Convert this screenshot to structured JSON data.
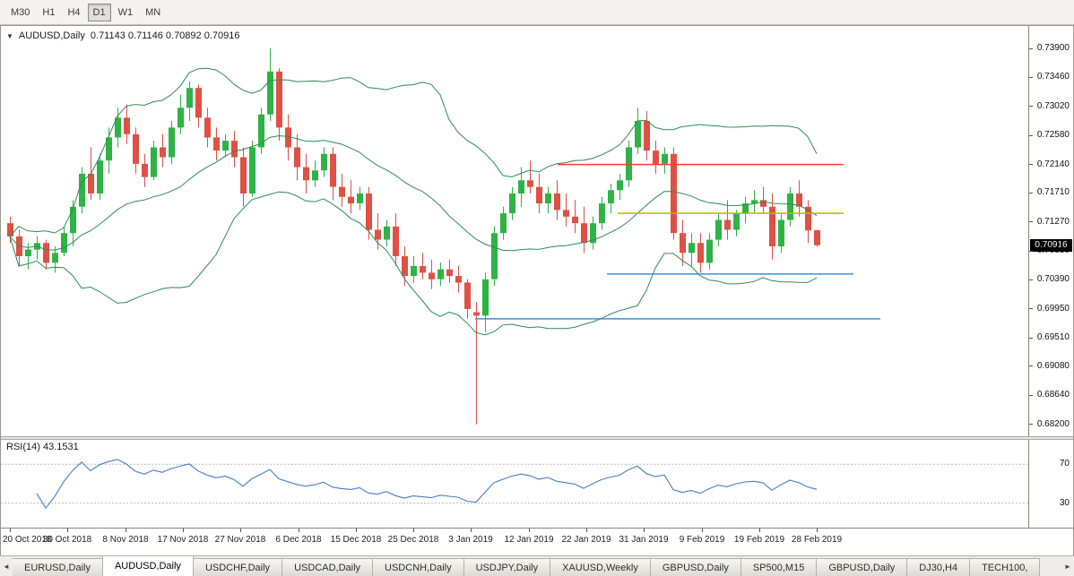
{
  "toolbar": {
    "timeframes": [
      {
        "label": "M30",
        "active": false
      },
      {
        "label": "H1",
        "active": false
      },
      {
        "label": "H4",
        "active": false
      },
      {
        "label": "D1",
        "active": true
      },
      {
        "label": "W1",
        "active": false
      },
      {
        "label": "MN",
        "active": false
      }
    ]
  },
  "chart": {
    "title": "AUDUSD,Daily",
    "ohlc_text": "0.71143 0.71146 0.70892 0.70916",
    "current_price": "0.70916",
    "price_axis_labels": [
      "0.73900",
      "0.73460",
      "0.73020",
      "0.72580",
      "0.72140",
      "0.71710",
      "0.71270",
      "0.70830",
      "0.70390",
      "0.69950",
      "0.69510",
      "0.69080",
      "0.68640",
      "0.68200"
    ],
    "date_axis_labels": [
      "20 Oct 2018",
      "30 Oct 2018",
      "8 Nov 2018",
      "17 Nov 2018",
      "27 Nov 2018",
      "6 Dec 2018",
      "15 Dec 2018",
      "25 Dec 2018",
      "3 Jan 2019",
      "12 Jan 2019",
      "22 Jan 2019",
      "31 Jan 2019",
      "9 Feb 2019",
      "19 Feb 2019",
      "28 Feb 2019"
    ],
    "colors": {
      "bull": "#2eb344",
      "bear": "#df5045",
      "bollinger": "#2e8b57",
      "rsi_line": "#4a7dbf",
      "level_line": "#b8b8b8",
      "hline_red": "#ff3b30",
      "hline_yellow": "#b5b900",
      "hline_blue": "#3f8fd2",
      "badge_bg": "#000000",
      "badge_text": "#ffffff"
    }
  },
  "chart_data": {
    "type": "candlestick",
    "symbol": "AUDUSD",
    "timeframe": "Daily",
    "y_range": [
      0.6802,
      0.7424
    ],
    "candles_ohlc": [
      [
        0.7125,
        0.7135,
        0.7095,
        0.7105
      ],
      [
        0.7105,
        0.7115,
        0.706,
        0.7075
      ],
      [
        0.7075,
        0.7095,
        0.7055,
        0.7085
      ],
      [
        0.7085,
        0.7105,
        0.707,
        0.7095
      ],
      [
        0.7095,
        0.71,
        0.7055,
        0.7065
      ],
      [
        0.7065,
        0.709,
        0.705,
        0.708
      ],
      [
        0.708,
        0.712,
        0.7075,
        0.711
      ],
      [
        0.711,
        0.716,
        0.709,
        0.715
      ],
      [
        0.715,
        0.721,
        0.714,
        0.72
      ],
      [
        0.72,
        0.724,
        0.716,
        0.717
      ],
      [
        0.717,
        0.723,
        0.716,
        0.722
      ],
      [
        0.722,
        0.727,
        0.72,
        0.7255
      ],
      [
        0.7255,
        0.73,
        0.724,
        0.7285
      ],
      [
        0.7285,
        0.7305,
        0.7245,
        0.726
      ],
      [
        0.726,
        0.727,
        0.72,
        0.7215
      ],
      [
        0.7215,
        0.723,
        0.718,
        0.7195
      ],
      [
        0.7195,
        0.725,
        0.719,
        0.724
      ],
      [
        0.724,
        0.726,
        0.721,
        0.7225
      ],
      [
        0.7225,
        0.728,
        0.7215,
        0.727
      ],
      [
        0.727,
        0.732,
        0.726,
        0.73
      ],
      [
        0.73,
        0.734,
        0.728,
        0.733
      ],
      [
        0.733,
        0.7335,
        0.727,
        0.7285
      ],
      [
        0.7285,
        0.73,
        0.724,
        0.7255
      ],
      [
        0.7255,
        0.727,
        0.722,
        0.7235
      ],
      [
        0.7235,
        0.726,
        0.7225,
        0.725
      ],
      [
        0.725,
        0.7265,
        0.721,
        0.7225
      ],
      [
        0.7225,
        0.724,
        0.715,
        0.717
      ],
      [
        0.717,
        0.725,
        0.7165,
        0.724
      ],
      [
        0.724,
        0.73,
        0.723,
        0.729
      ],
      [
        0.729,
        0.739,
        0.728,
        0.7355
      ],
      [
        0.7355,
        0.736,
        0.725,
        0.727
      ],
      [
        0.727,
        0.729,
        0.722,
        0.724
      ],
      [
        0.724,
        0.726,
        0.719,
        0.721
      ],
      [
        0.721,
        0.723,
        0.717,
        0.719
      ],
      [
        0.719,
        0.722,
        0.718,
        0.7205
      ],
      [
        0.7205,
        0.724,
        0.7195,
        0.723
      ],
      [
        0.723,
        0.724,
        0.716,
        0.718
      ],
      [
        0.718,
        0.72,
        0.715,
        0.7165
      ],
      [
        0.7165,
        0.719,
        0.714,
        0.7155
      ],
      [
        0.7155,
        0.718,
        0.7145,
        0.717
      ],
      [
        0.717,
        0.718,
        0.71,
        0.7115
      ],
      [
        0.7115,
        0.714,
        0.7085,
        0.71
      ],
      [
        0.71,
        0.713,
        0.709,
        0.712
      ],
      [
        0.712,
        0.714,
        0.706,
        0.7075
      ],
      [
        0.7075,
        0.709,
        0.703,
        0.7045
      ],
      [
        0.7045,
        0.7075,
        0.7035,
        0.706
      ],
      [
        0.706,
        0.708,
        0.704,
        0.705
      ],
      [
        0.705,
        0.707,
        0.7025,
        0.704
      ],
      [
        0.704,
        0.7065,
        0.703,
        0.7055
      ],
      [
        0.7055,
        0.707,
        0.7035,
        0.7045
      ],
      [
        0.7045,
        0.706,
        0.702,
        0.7035
      ],
      [
        0.7035,
        0.704,
        0.698,
        0.6995
      ],
      [
        0.699,
        0.7005,
        0.682,
        0.6985
      ],
      [
        0.6985,
        0.705,
        0.696,
        0.704
      ],
      [
        0.704,
        0.712,
        0.703,
        0.711
      ],
      [
        0.711,
        0.715,
        0.71,
        0.714
      ],
      [
        0.714,
        0.718,
        0.713,
        0.717
      ],
      [
        0.717,
        0.721,
        0.715,
        0.719
      ],
      [
        0.719,
        0.722,
        0.717,
        0.718
      ],
      [
        0.718,
        0.72,
        0.714,
        0.7155
      ],
      [
        0.7155,
        0.718,
        0.714,
        0.717
      ],
      [
        0.717,
        0.719,
        0.713,
        0.7145
      ],
      [
        0.7145,
        0.717,
        0.712,
        0.7135
      ],
      [
        0.7135,
        0.716,
        0.711,
        0.7125
      ],
      [
        0.7125,
        0.715,
        0.708,
        0.7095
      ],
      [
        0.7095,
        0.7135,
        0.7085,
        0.7125
      ],
      [
        0.7125,
        0.7165,
        0.7115,
        0.7155
      ],
      [
        0.7155,
        0.7185,
        0.714,
        0.7175
      ],
      [
        0.7175,
        0.72,
        0.716,
        0.719
      ],
      [
        0.719,
        0.725,
        0.718,
        0.724
      ],
      [
        0.724,
        0.73,
        0.723,
        0.728
      ],
      [
        0.728,
        0.7295,
        0.722,
        0.7235
      ],
      [
        0.7235,
        0.725,
        0.72,
        0.7215
      ],
      [
        0.7215,
        0.724,
        0.72,
        0.723
      ],
      [
        0.723,
        0.724,
        0.71,
        0.711
      ],
      [
        0.711,
        0.713,
        0.706,
        0.708
      ],
      [
        0.708,
        0.711,
        0.706,
        0.7095
      ],
      [
        0.7095,
        0.711,
        0.705,
        0.7065
      ],
      [
        0.7065,
        0.711,
        0.7055,
        0.71
      ],
      [
        0.71,
        0.714,
        0.709,
        0.713
      ],
      [
        0.713,
        0.716,
        0.71,
        0.7115
      ],
      [
        0.7115,
        0.7145,
        0.7105,
        0.714
      ],
      [
        0.714,
        0.7165,
        0.7125,
        0.7155
      ],
      [
        0.7155,
        0.7175,
        0.714,
        0.716
      ],
      [
        0.716,
        0.718,
        0.714,
        0.715
      ],
      [
        0.715,
        0.717,
        0.707,
        0.709
      ],
      [
        0.709,
        0.714,
        0.708,
        0.713
      ],
      [
        0.713,
        0.718,
        0.712,
        0.717
      ],
      [
        0.717,
        0.719,
        0.7135,
        0.715
      ],
      [
        0.715,
        0.716,
        0.7095,
        0.7114
      ],
      [
        0.71143,
        0.71146,
        0.70892,
        0.70916
      ]
    ],
    "overlays": {
      "bollinger_bands": {
        "period": 20,
        "deviation": 2
      },
      "horizontal_lines": [
        {
          "price": 0.7214,
          "color_key": "hline_red",
          "from_frac": 0.542,
          "to_frac": 0.82
        },
        {
          "price": 0.714,
          "color_key": "hline_yellow",
          "from_frac": 0.6,
          "to_frac": 0.82
        },
        {
          "price": 0.7048,
          "color_key": "hline_blue",
          "from_frac": 0.59,
          "to_frac": 0.83
        },
        {
          "price": 0.698,
          "color_key": "hline_blue",
          "from_frac": 0.462,
          "to_frac": 0.856
        }
      ]
    },
    "indicator_pane": {
      "type": "line",
      "name": "RSI",
      "period": 14,
      "current_value": 43.1531,
      "levels": [
        70,
        30
      ],
      "y_range": [
        5,
        95
      ]
    }
  },
  "rsi_panel": {
    "label": "RSI(14) 43.1531",
    "level_labels": [
      "70",
      "30"
    ]
  },
  "tabs": {
    "left_arrow": "◄",
    "right_arrow": "►",
    "items": [
      {
        "label": "EURUSD,Daily",
        "active": false
      },
      {
        "label": "AUDUSD,Daily",
        "active": true
      },
      {
        "label": "USDCHF,Daily",
        "active": false
      },
      {
        "label": "USDCAD,Daily",
        "active": false
      },
      {
        "label": "USDCNH,Daily",
        "active": false
      },
      {
        "label": "USDJPY,Daily",
        "active": false
      },
      {
        "label": "XAUUSD,Weekly",
        "active": false
      },
      {
        "label": "GBPUSD,Daily",
        "active": false
      },
      {
        "label": "SP500,M15",
        "active": false
      },
      {
        "label": "GBPUSD,Daily",
        "active": false
      },
      {
        "label": "DJ30,H4",
        "active": false
      },
      {
        "label": "TECH100,",
        "active": false
      }
    ]
  }
}
